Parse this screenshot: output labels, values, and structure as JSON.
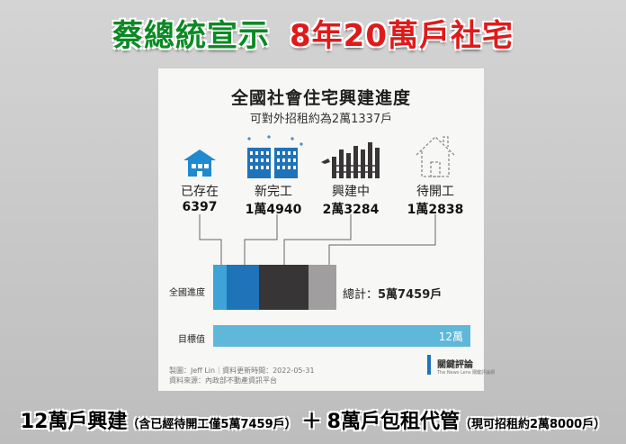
{
  "headline": {
    "left": "蔡總統宣示",
    "right": "8年20萬戶社宅"
  },
  "card": {
    "title": "全國社會住宅興建進度",
    "subtitle": "可對外招租約為2萬1337戶",
    "stats": [
      {
        "label": "已存在",
        "value": "6397",
        "icon": "house-icon"
      },
      {
        "label": "新完工",
        "value": "1萬4940",
        "icon": "buildings-icon"
      },
      {
        "label": "興建中",
        "value": "2萬3284",
        "icon": "construction-icon"
      },
      {
        "label": "待開工",
        "value": "1萬2838",
        "icon": "outline-house-icon"
      }
    ],
    "progress_label": "全國進度",
    "target_label": "目標值",
    "target_value": "12萬",
    "total_label": "總計：",
    "total_value": "5萬7459戶",
    "credit": "製圖：Jeff Lin｜資料更新時間：2022-05-31",
    "source": "資料來源：內政部不動產資訊平台",
    "brand": {
      "name": "關鍵評論",
      "tagline": "The News Lens 關鍵評論網"
    },
    "colors": {
      "existing": "#3ea3d6",
      "completed": "#1f73b8",
      "building": "#383536",
      "pending": "#a19e9f",
      "target": "#5fb7da"
    }
  },
  "chart_data": {
    "type": "bar",
    "categories": [
      "已存在",
      "新完工",
      "興建中",
      "待開工"
    ],
    "values": [
      6397,
      14940,
      23284,
      12838
    ],
    "target": 120000,
    "total": 57459
  },
  "bottom": {
    "part1": "12萬戶興建",
    "part1_note": "（含已經待開工僅5萬7459戶）",
    "plus": "＋",
    "part2": "8萬戶包租代管",
    "part2_note": "（現可招租約2萬8000戶）"
  }
}
